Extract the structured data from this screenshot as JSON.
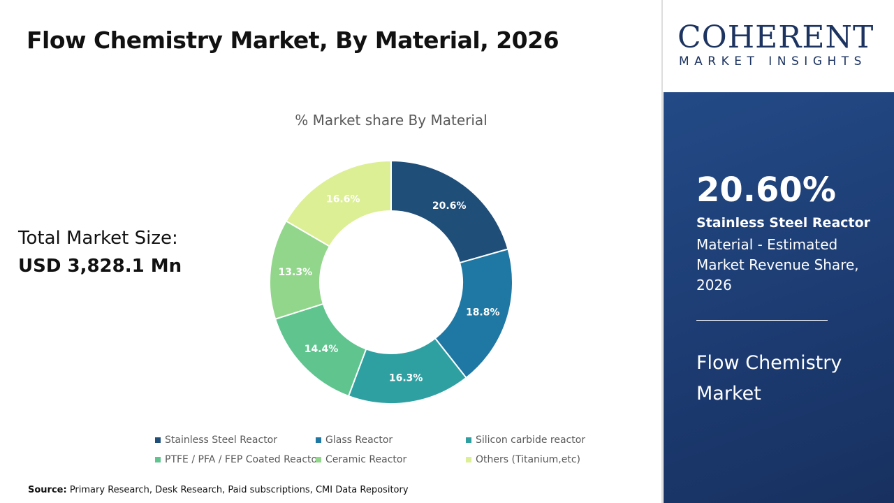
{
  "header": {
    "title": "Flow Chemistry Market, By Material, 2026"
  },
  "total": {
    "label": "Total Market Size:",
    "value": "USD 3,828.1 Mn"
  },
  "source": {
    "label": "Source:",
    "text": " Primary Research, Desk Research, Paid subscriptions, CMI Data Repository"
  },
  "logo": {
    "name": "COHERENT",
    "tagline": "MARKET INSIGHTS"
  },
  "panel": {
    "percent": "20.60%",
    "segment": "Stainless Steel Reactor",
    "description": "Material - Estimated Market Revenue Share, 2026",
    "market": "Flow Chemistry Market"
  },
  "chart_data": {
    "type": "pie",
    "donut": true,
    "title": "% Market share By Material",
    "legend": "bottom",
    "categories": [
      "Stainless Steel Reactor",
      "Glass Reactor",
      "Silicon carbide reactor",
      "PTFE / PFA / FEP Coated Reactor",
      "Ceramic Reactor",
      "Others (Titanium,etc)"
    ],
    "values": [
      20.6,
      18.8,
      16.3,
      14.4,
      13.3,
      16.6
    ],
    "labels": [
      "20.6%",
      "18.8%",
      "16.3%",
      "14.4%",
      "13.3%",
      "16.6%"
    ],
    "colors": [
      "#1f4e79",
      "#1f77a3",
      "#2fa0a2",
      "#5fc48e",
      "#92d68b",
      "#dcef95"
    ]
  }
}
